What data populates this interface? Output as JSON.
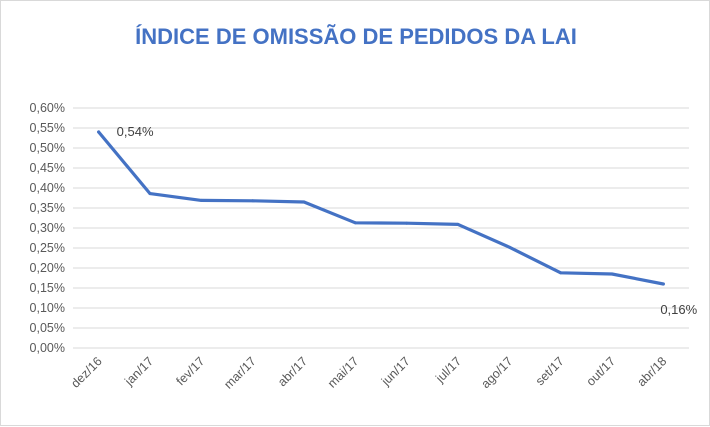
{
  "chart_data": {
    "type": "line",
    "title": "ÍNDICE DE OMISSÃO DE PEDIDOS DA LAI",
    "xlabel": "",
    "ylabel": "",
    "categories": [
      "dez/16",
      "jan/17",
      "fev/17",
      "mar/17",
      "abr/17",
      "mai/17",
      "jun/17",
      "jul/17",
      "ago/17",
      "set/17",
      "out/17",
      "abr/18"
    ],
    "series": [
      {
        "values": [
          0.54,
          0.386,
          0.369,
          0.368,
          0.365,
          0.313,
          0.312,
          0.309,
          0.252,
          0.188,
          0.185,
          0.16
        ],
        "color": "#4472C4"
      }
    ],
    "ylim": [
      0,
      0.6
    ],
    "yticks": [
      "0,00%",
      "0,05%",
      "0,10%",
      "0,15%",
      "0,20%",
      "0,25%",
      "0,30%",
      "0,35%",
      "0,40%",
      "0,45%",
      "0,50%",
      "0,55%",
      "0,60%"
    ],
    "data_labels": [
      {
        "category": "dez/16",
        "text": "0,54%"
      },
      {
        "category": "abr/18",
        "text": "0,16%"
      }
    ],
    "grid": true,
    "legend": "none"
  }
}
